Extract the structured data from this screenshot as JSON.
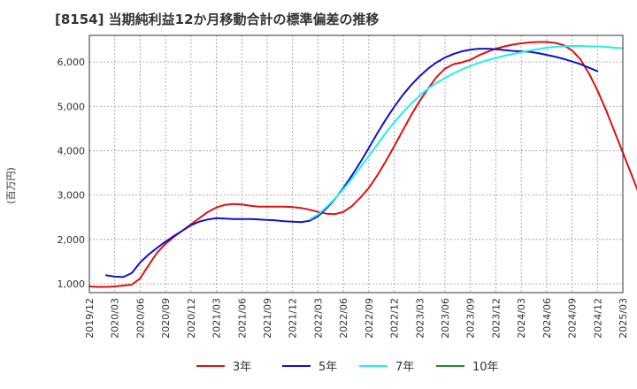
{
  "chart_data": {
    "type": "line",
    "title": "[8154]  当期純利益12か月移動合計の標準偏差の推移",
    "ylabel": "(百万円)",
    "xlabel": "",
    "ylim": [
      800,
      6600
    ],
    "yticks": [
      1000,
      2000,
      3000,
      4000,
      5000,
      6000
    ],
    "ytick_labels": [
      "1,000",
      "2,000",
      "3,000",
      "4,000",
      "5,000",
      "6,000"
    ],
    "xlim": [
      "2019-12",
      "2025-03"
    ],
    "xtick_labels": [
      "2019/12",
      "2020/03",
      "2020/06",
      "2020/09",
      "2020/12",
      "2021/03",
      "2021/06",
      "2021/09",
      "2021/12",
      "2022/03",
      "2022/06",
      "2022/09",
      "2022/12",
      "2023/03",
      "2023/06",
      "2023/09",
      "2023/12",
      "2024/03",
      "2024/06",
      "2024/09",
      "2024/12",
      "2025/03"
    ],
    "grid": true,
    "legend_position": "bottom",
    "series": [
      {
        "name": "3年",
        "color": "#dd1111",
        "start": "2019-12",
        "values": [
          940,
          930,
          930,
          940,
          960,
          980,
          1120,
          1420,
          1700,
          1900,
          2060,
          2200,
          2340,
          2480,
          2620,
          2720,
          2780,
          2800,
          2790,
          2760,
          2740,
          2740,
          2740,
          2740,
          2730,
          2710,
          2670,
          2620,
          2580,
          2570,
          2620,
          2750,
          2940,
          3160,
          3440,
          3760,
          4100,
          4450,
          4800,
          5120,
          5400,
          5660,
          5850,
          5950,
          5990,
          6050,
          6150,
          6230,
          6300,
          6350,
          6390,
          6420,
          6440,
          6450,
          6450,
          6430,
          6380,
          6260,
          6060,
          5740,
          5360,
          4920,
          4440,
          3960,
          3470,
          2990
        ]
      },
      {
        "name": "5年",
        "color": "#1111cc",
        "start": "2020-02",
        "values": [
          1190,
          1160,
          1150,
          1240,
          1480,
          1660,
          1810,
          1950,
          2080,
          2200,
          2320,
          2400,
          2450,
          2480,
          2470,
          2460,
          2460,
          2460,
          2450,
          2440,
          2430,
          2410,
          2400,
          2390,
          2420,
          2520,
          2700,
          2910,
          3160,
          3440,
          3740,
          4060,
          4390,
          4700,
          4990,
          5250,
          5480,
          5680,
          5850,
          5990,
          6100,
          6180,
          6240,
          6280,
          6300,
          6300,
          6290,
          6270,
          6250,
          6240,
          6230,
          6200,
          6160,
          6120,
          6070,
          6010,
          5950,
          5870,
          5790
        ]
      },
      {
        "name": "7年",
        "color": "#22eeee",
        "start": "2022-02",
        "values": [
          2450,
          2560,
          2730,
          2920,
          3130,
          3370,
          3620,
          3880,
          4140,
          4400,
          4640,
          4860,
          5060,
          5240,
          5400,
          5530,
          5640,
          5740,
          5830,
          5910,
          5980,
          6040,
          6090,
          6140,
          6180,
          6220,
          6260,
          6290,
          6320,
          6340,
          6350,
          6360,
          6360,
          6350,
          6350,
          6340,
          6320,
          6310
        ]
      },
      {
        "name": "10年",
        "color": "#228822",
        "start": "2024-12",
        "values": []
      }
    ]
  }
}
